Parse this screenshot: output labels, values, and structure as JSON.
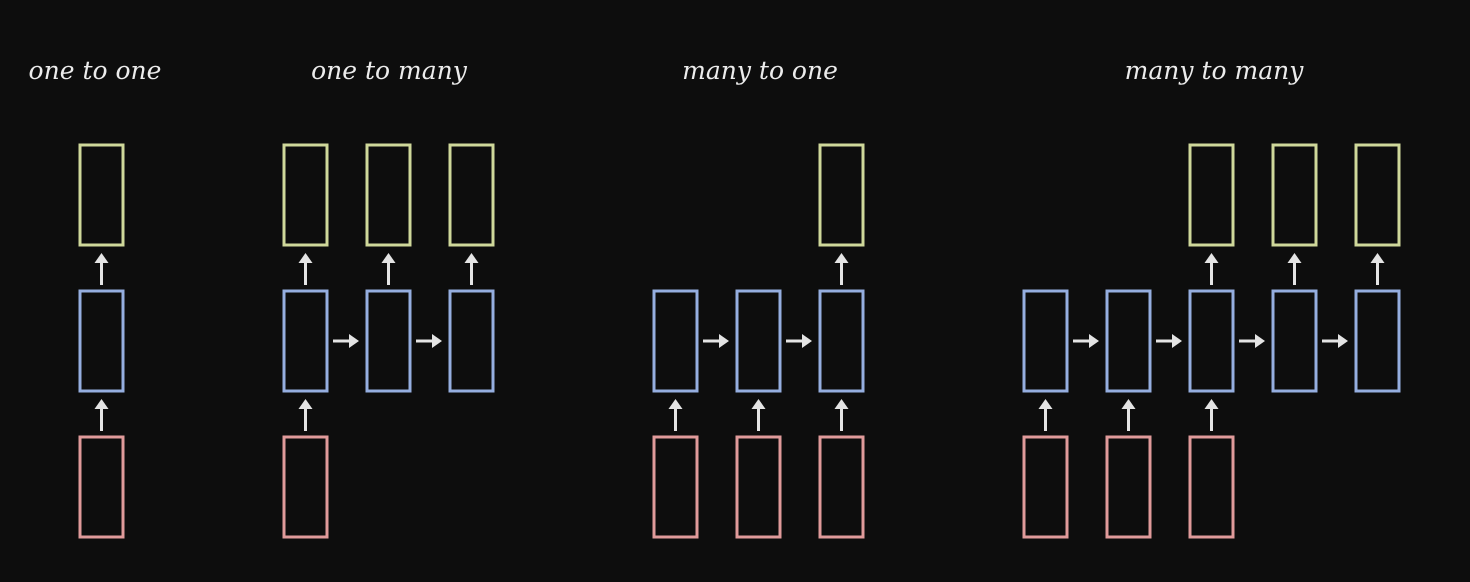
{
  "colors": {
    "background": "#0d0d0d",
    "output": "#cfd89a",
    "hidden": "#95aee0",
    "input": "#e09a9a",
    "arrow": "#e4e4e4",
    "title": "#ececec"
  },
  "diagrams": [
    {
      "title": "one to one",
      "cells": [
        {
          "kind": "output",
          "col": 0,
          "row": 0
        },
        {
          "kind": "hidden",
          "col": 0,
          "row": 1
        },
        {
          "kind": "input",
          "col": 0,
          "row": 2
        }
      ],
      "arrows": [
        {
          "dir": "up",
          "col": 0,
          "from_row": 2
        },
        {
          "dir": "up",
          "col": 0,
          "from_row": 1
        }
      ]
    },
    {
      "title": "one to many",
      "cells": [
        {
          "kind": "output",
          "col": 0,
          "row": 0
        },
        {
          "kind": "output",
          "col": 1,
          "row": 0
        },
        {
          "kind": "output",
          "col": 2,
          "row": 0
        },
        {
          "kind": "hidden",
          "col": 0,
          "row": 1
        },
        {
          "kind": "hidden",
          "col": 1,
          "row": 1
        },
        {
          "kind": "hidden",
          "col": 2,
          "row": 1
        },
        {
          "kind": "input",
          "col": 0,
          "row": 2
        }
      ],
      "arrows": [
        {
          "dir": "up",
          "col": 0,
          "from_row": 2
        },
        {
          "dir": "up",
          "col": 0,
          "from_row": 1
        },
        {
          "dir": "up",
          "col": 1,
          "from_row": 1
        },
        {
          "dir": "up",
          "col": 2,
          "from_row": 1
        },
        {
          "dir": "right",
          "col": 0,
          "row": 1
        },
        {
          "dir": "right",
          "col": 1,
          "row": 1
        }
      ]
    },
    {
      "title": "many to one",
      "cells": [
        {
          "kind": "output",
          "col": 2,
          "row": 0
        },
        {
          "kind": "hidden",
          "col": 0,
          "row": 1
        },
        {
          "kind": "hidden",
          "col": 1,
          "row": 1
        },
        {
          "kind": "hidden",
          "col": 2,
          "row": 1
        },
        {
          "kind": "input",
          "col": 0,
          "row": 2
        },
        {
          "kind": "input",
          "col": 1,
          "row": 2
        },
        {
          "kind": "input",
          "col": 2,
          "row": 2
        }
      ],
      "arrows": [
        {
          "dir": "up",
          "col": 0,
          "from_row": 2
        },
        {
          "dir": "up",
          "col": 1,
          "from_row": 2
        },
        {
          "dir": "up",
          "col": 2,
          "from_row": 2
        },
        {
          "dir": "up",
          "col": 2,
          "from_row": 1
        },
        {
          "dir": "right",
          "col": 0,
          "row": 1
        },
        {
          "dir": "right",
          "col": 1,
          "row": 1
        }
      ]
    },
    {
      "title": "many to many",
      "cells": [
        {
          "kind": "output",
          "col": 2,
          "row": 0
        },
        {
          "kind": "output",
          "col": 3,
          "row": 0
        },
        {
          "kind": "output",
          "col": 4,
          "row": 0
        },
        {
          "kind": "hidden",
          "col": 0,
          "row": 1
        },
        {
          "kind": "hidden",
          "col": 1,
          "row": 1
        },
        {
          "kind": "hidden",
          "col": 2,
          "row": 1
        },
        {
          "kind": "hidden",
          "col": 3,
          "row": 1
        },
        {
          "kind": "hidden",
          "col": 4,
          "row": 1
        },
        {
          "kind": "input",
          "col": 0,
          "row": 2
        },
        {
          "kind": "input",
          "col": 1,
          "row": 2
        },
        {
          "kind": "input",
          "col": 2,
          "row": 2
        }
      ],
      "arrows": [
        {
          "dir": "up",
          "col": 0,
          "from_row": 2
        },
        {
          "dir": "up",
          "col": 1,
          "from_row": 2
        },
        {
          "dir": "up",
          "col": 2,
          "from_row": 2
        },
        {
          "dir": "up",
          "col": 2,
          "from_row": 1
        },
        {
          "dir": "up",
          "col": 3,
          "from_row": 1
        },
        {
          "dir": "up",
          "col": 4,
          "from_row": 1
        },
        {
          "dir": "right",
          "col": 0,
          "row": 1
        },
        {
          "dir": "right",
          "col": 1,
          "row": 1
        },
        {
          "dir": "right",
          "col": 2,
          "row": 1
        },
        {
          "dir": "right",
          "col": 3,
          "row": 1
        }
      ]
    }
  ]
}
